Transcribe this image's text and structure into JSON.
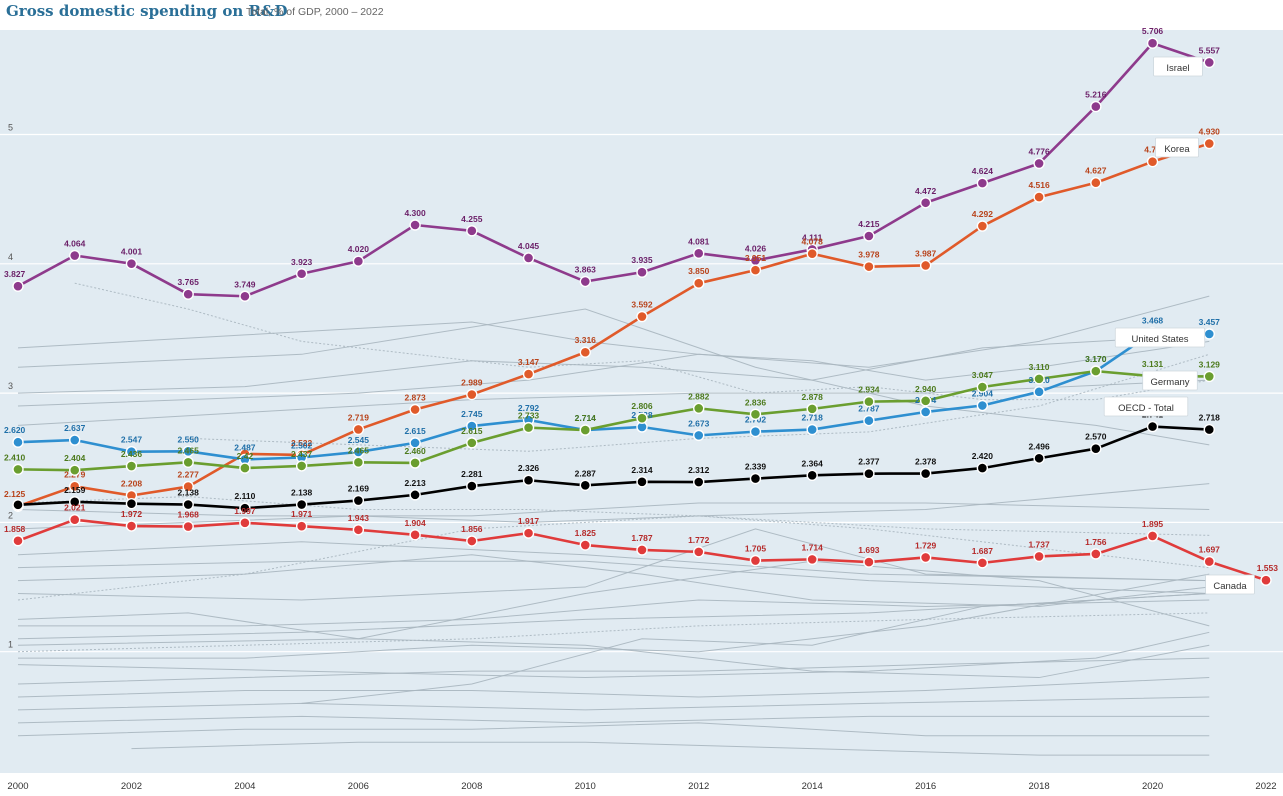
{
  "header": {
    "title": "Gross domestic spending on R&D",
    "subtitle": "Total, % of GDP, 2000 – 2022"
  },
  "chart_data": {
    "type": "line",
    "title": "Gross domestic spending on R&D",
    "subtitle": "Total, % of GDP, 2000 – 2022",
    "xlabel": "",
    "ylabel": "",
    "xlim": [
      2000,
      2022
    ],
    "ylim": [
      0,
      5.9
    ],
    "x_ticks": [
      2000,
      2002,
      2004,
      2006,
      2008,
      2010,
      2012,
      2014,
      2016,
      2018,
      2020,
      2022
    ],
    "y_ticks": [
      1,
      2,
      3,
      4,
      5
    ],
    "grid": true,
    "background_color": "#e1ebf2",
    "background_series_color": "#a9b6bf",
    "series": [
      {
        "name": "Israel",
        "color": "#8e3a8c",
        "label_color": "#6b1f68",
        "x": [
          2000,
          2001,
          2002,
          2003,
          2004,
          2005,
          2006,
          2007,
          2008,
          2009,
          2010,
          2011,
          2012,
          2013,
          2014,
          2015,
          2016,
          2017,
          2018,
          2019,
          2020,
          2021
        ],
        "values": [
          3.827,
          4.064,
          4.001,
          3.765,
          3.749,
          3.923,
          4.02,
          4.3,
          4.255,
          4.045,
          3.863,
          3.935,
          4.081,
          4.026,
          4.111,
          4.215,
          4.472,
          4.624,
          4.776,
          5.216,
          5.706,
          5.557
        ],
        "labels": [
          "3.827",
          "4.064",
          "4.001",
          "3.765",
          "3.749",
          "3.923",
          "4.020",
          "4.300",
          "4.255",
          "4.045",
          "3.863",
          "3.935",
          "4.081",
          "4.026",
          "4.111",
          "4.215",
          "4.472",
          "4.624",
          "4.776",
          "5.216",
          "5.706",
          "5.557"
        ]
      },
      {
        "name": "Korea",
        "color": "#e05a2a",
        "label_color": "#b8431b",
        "x": [
          2000,
          2001,
          2002,
          2003,
          2004,
          2005,
          2006,
          2007,
          2008,
          2009,
          2010,
          2011,
          2012,
          2013,
          2014,
          2015,
          2016,
          2017,
          2018,
          2019,
          2020,
          2021
        ],
        "values": [
          2.125,
          2.279,
          2.208,
          2.277,
          2.53,
          2.522,
          2.719,
          2.873,
          2.989,
          3.147,
          3.316,
          3.592,
          3.85,
          3.951,
          4.078,
          3.978,
          3.987,
          4.292,
          4.516,
          4.627,
          4.79,
          4.93
        ],
        "labels": [
          "2.125",
          "2.279",
          "2.208",
          "2.277",
          "",
          "2.522",
          "2.719",
          "2.873",
          "2.989",
          "3.147",
          "3.316",
          "3.592",
          "3.850",
          "3.951",
          "4.078",
          "3.978",
          "3.987",
          "4.292",
          "4.516",
          "4.627",
          "4.79",
          "4.930"
        ]
      },
      {
        "name": "United States",
        "color": "#2e8fd0",
        "label_color": "#1f6fa8",
        "x": [
          2000,
          2001,
          2002,
          2003,
          2004,
          2005,
          2006,
          2007,
          2008,
          2009,
          2010,
          2011,
          2012,
          2013,
          2014,
          2015,
          2016,
          2017,
          2018,
          2019,
          2020,
          2021
        ],
        "values": [
          2.62,
          2.637,
          2.547,
          2.55,
          2.487,
          2.502,
          2.545,
          2.615,
          2.745,
          2.792,
          2.714,
          2.738,
          2.673,
          2.702,
          2.718,
          2.787,
          2.854,
          2.904,
          3.01,
          3.17,
          3.468,
          3.457
        ],
        "labels": [
          "2.620",
          "2.637",
          "2.547",
          "2.550",
          "2.487",
          "2.502",
          "2.545",
          "2.615",
          "2.745",
          "2.792",
          "2.714",
          "2.738",
          "2.673",
          "2.702",
          "2.718",
          "2.787",
          "2.854",
          "2.904",
          "3.010",
          "3.170",
          "3.468",
          "3.457"
        ]
      },
      {
        "name": "Germany",
        "color": "#6a9e2f",
        "label_color": "#4c7a1c",
        "x": [
          2000,
          2001,
          2002,
          2003,
          2004,
          2005,
          2006,
          2007,
          2008,
          2009,
          2010,
          2011,
          2012,
          2013,
          2014,
          2015,
          2016,
          2017,
          2018,
          2019,
          2020,
          2021
        ],
        "values": [
          2.41,
          2.404,
          2.436,
          2.465,
          2.42,
          2.437,
          2.465,
          2.46,
          2.615,
          2.733,
          2.714,
          2.806,
          2.882,
          2.836,
          2.878,
          2.934,
          2.94,
          3.047,
          3.11,
          3.17,
          3.131,
          3.129
        ],
        "labels": [
          "2.410",
          "2.404",
          "2.436",
          "2.465",
          "2.42",
          "2.437",
          "2.465",
          "2.460",
          "2.615",
          "2.733",
          "2.714",
          "2.806",
          "2.882",
          "2.836",
          "2.878",
          "2.934",
          "2.940",
          "3.047",
          "3.110",
          "3.170",
          "3.131",
          "3.129"
        ]
      },
      {
        "name": "OECD - Total",
        "color": "#000000",
        "label_color": "#111111",
        "x": [
          2000,
          2001,
          2002,
          2003,
          2004,
          2005,
          2006,
          2007,
          2008,
          2009,
          2010,
          2011,
          2012,
          2013,
          2014,
          2015,
          2016,
          2017,
          2018,
          2019,
          2020,
          2021
        ],
        "values": [
          2.136,
          2.159,
          2.145,
          2.138,
          2.11,
          2.138,
          2.169,
          2.213,
          2.281,
          2.326,
          2.287,
          2.314,
          2.312,
          2.339,
          2.364,
          2.377,
          2.378,
          2.42,
          2.496,
          2.57,
          2.741,
          2.718
        ],
        "labels": [
          "",
          "2.159",
          "",
          "2.138",
          "2.110",
          "2.138",
          "2.169",
          "2.213",
          "2.281",
          "2.326",
          "2.287",
          "2.314",
          "2.312",
          "2.339",
          "2.364",
          "2.377",
          "2.378",
          "2.420",
          "2.496",
          "2.570",
          "2.741",
          "2.718"
        ]
      },
      {
        "name": "Canada",
        "color": "#e03b3b",
        "label_color": "#b52a2a",
        "x": [
          2000,
          2001,
          2002,
          2003,
          2004,
          2005,
          2006,
          2007,
          2008,
          2009,
          2010,
          2011,
          2012,
          2013,
          2014,
          2015,
          2016,
          2017,
          2018,
          2019,
          2020,
          2021,
          2022
        ],
        "values": [
          1.858,
          2.021,
          1.972,
          1.968,
          1.997,
          1.971,
          1.943,
          1.904,
          1.856,
          1.917,
          1.825,
          1.787,
          1.772,
          1.705,
          1.714,
          1.693,
          1.729,
          1.687,
          1.737,
          1.756,
          1.895,
          1.697,
          1.553
        ],
        "labels": [
          "1.858",
          "2.021",
          "1.972",
          "1.968",
          "1.997",
          "1.971",
          "1.943",
          "1.904",
          "1.856",
          "1.917",
          "1.825",
          "1.787",
          "1.772",
          "1.705",
          "1.714",
          "1.693",
          "1.729",
          "1.687",
          "1.737",
          "1.756",
          "1.895",
          "1.697",
          "1.553"
        ]
      }
    ],
    "background_series": [
      {
        "dashed": true,
        "x": [
          2001,
          2003,
          2005,
          2007,
          2009,
          2011,
          2013,
          2015,
          2017,
          2019,
          2021
        ],
        "values": [
          3.85,
          3.65,
          3.4,
          3.3,
          3.2,
          3.25,
          3.0,
          3.05,
          2.95,
          2.95,
          3.1
        ]
      },
      {
        "dashed": false,
        "x": [
          2000,
          2004,
          2008,
          2010,
          2012,
          2014,
          2016,
          2018,
          2021
        ],
        "values": [
          3.35,
          3.45,
          3.55,
          3.4,
          3.3,
          3.25,
          3.1,
          3.2,
          3.4
        ]
      },
      {
        "dashed": false,
        "x": [
          2000,
          2005,
          2010,
          2013,
          2016,
          2019,
          2021
        ],
        "values": [
          3.2,
          3.3,
          3.65,
          3.2,
          2.9,
          2.75,
          2.6
        ]
      },
      {
        "dashed": false,
        "x": [
          2000,
          2004,
          2008,
          2011,
          2014,
          2017,
          2021
        ],
        "values": [
          3.0,
          3.05,
          3.25,
          3.2,
          3.1,
          3.35,
          3.45
        ]
      },
      {
        "dashed": false,
        "x": [
          2000,
          2003,
          2006,
          2009,
          2012,
          2015,
          2018,
          2021
        ],
        "values": [
          2.9,
          2.95,
          3.0,
          3.1,
          3.3,
          3.2,
          3.4,
          3.75
        ]
      },
      {
        "dashed": false,
        "x": [
          2000,
          2004,
          2008,
          2012,
          2016,
          2021
        ],
        "values": [
          2.75,
          2.85,
          2.95,
          3.0,
          3.0,
          3.1
        ]
      },
      {
        "dashed": true,
        "x": [
          2003,
          2006,
          2009,
          2012,
          2015,
          2018,
          2021
        ],
        "values": [
          2.65,
          2.6,
          2.55,
          2.65,
          2.7,
          2.9,
          3.3
        ]
      },
      {
        "dashed": true,
        "x": [
          2000,
          2003,
          2006,
          2009,
          2012,
          2015,
          2018,
          2021
        ],
        "values": [
          2.15,
          2.2,
          2.1,
          2.1,
          2.05,
          1.95,
          1.8,
          1.65
        ]
      },
      {
        "dashed": false,
        "x": [
          2000,
          2004,
          2008,
          2012,
          2016,
          2021
        ],
        "values": [
          2.1,
          2.05,
          2.05,
          2.15,
          2.15,
          2.1
        ]
      },
      {
        "dashed": false,
        "x": [
          2000,
          2003,
          2006,
          2009,
          2012,
          2016,
          2021
        ],
        "values": [
          1.95,
          2.0,
          2.05,
          2.0,
          2.05,
          2.1,
          2.3
        ]
      },
      {
        "dashed": false,
        "x": [
          2000,
          2005,
          2010,
          2015,
          2021
        ],
        "values": [
          1.75,
          1.85,
          1.75,
          1.6,
          1.55
        ]
      },
      {
        "dashed": false,
        "x": [
          2000,
          2005,
          2010,
          2015,
          2021
        ],
        "values": [
          1.65,
          1.7,
          1.7,
          1.55,
          1.45
        ]
      },
      {
        "dashed": false,
        "x": [
          2000,
          2004,
          2008,
          2011,
          2014,
          2018,
          2021
        ],
        "values": [
          1.55,
          1.6,
          1.75,
          1.6,
          1.4,
          1.35,
          1.5
        ]
      },
      {
        "dashed": false,
        "x": [
          2000,
          2005,
          2010,
          2013,
          2016,
          2021
        ],
        "values": [
          1.45,
          1.4,
          1.5,
          1.95,
          1.6,
          1.55
        ]
      },
      {
        "dashed": true,
        "x": [
          2000,
          2004,
          2008,
          2012,
          2016,
          2021
        ],
        "values": [
          1.4,
          1.6,
          1.95,
          2.05,
          1.95,
          1.9
        ]
      },
      {
        "dashed": true,
        "x": [
          2000,
          2004,
          2008,
          2012,
          2016,
          2021
        ],
        "values": [
          1.0,
          1.05,
          1.1,
          1.2,
          1.25,
          1.3
        ]
      },
      {
        "dashed": false,
        "x": [
          2000,
          2005,
          2010,
          2015,
          2021
        ],
        "values": [
          1.1,
          1.15,
          1.25,
          1.3,
          1.45
        ]
      },
      {
        "dashed": false,
        "x": [
          2000,
          2004,
          2008,
          2012,
          2016,
          2021
        ],
        "values": [
          0.95,
          0.95,
          1.05,
          1.0,
          1.2,
          1.6
        ]
      },
      {
        "dashed": false,
        "x": [
          2000,
          2006,
          2010,
          2014,
          2018,
          2021
        ],
        "values": [
          1.05,
          1.1,
          1.05,
          0.85,
          0.8,
          1.05
        ]
      },
      {
        "dashed": false,
        "x": [
          2000,
          2005,
          2010,
          2015,
          2019,
          2021
        ],
        "values": [
          0.9,
          0.85,
          0.8,
          0.85,
          0.95,
          1.15
        ]
      },
      {
        "dashed": false,
        "x": [
          2000,
          2004,
          2008,
          2012,
          2016,
          2021
        ],
        "values": [
          0.75,
          0.8,
          0.85,
          0.85,
          0.9,
          0.95
        ]
      },
      {
        "dashed": false,
        "x": [
          2000,
          2004,
          2008,
          2012,
          2016,
          2021
        ],
        "values": [
          0.65,
          0.7,
          0.7,
          0.65,
          0.7,
          0.8
        ]
      },
      {
        "dashed": false,
        "x": [
          2000,
          2005,
          2010,
          2015,
          2021
        ],
        "values": [
          0.55,
          0.6,
          0.55,
          0.6,
          0.65
        ]
      },
      {
        "dashed": false,
        "x": [
          2000,
          2005,
          2010,
          2015,
          2021
        ],
        "values": [
          0.45,
          0.5,
          0.45,
          0.5,
          0.5
        ]
      },
      {
        "dashed": false,
        "x": [
          2000,
          2004,
          2008,
          2012,
          2016,
          2021
        ],
        "values": [
          0.35,
          0.4,
          0.4,
          0.45,
          0.35,
          0.35
        ]
      },
      {
        "dashed": false,
        "x": [
          2002,
          2006,
          2010,
          2014,
          2018,
          2021
        ],
        "values": [
          0.25,
          0.3,
          0.3,
          0.25,
          0.2,
          0.2
        ]
      },
      {
        "dashed": false,
        "x": [
          2000,
          2003,
          2006,
          2010,
          2014,
          2018,
          2021
        ],
        "values": [
          1.25,
          1.3,
          1.1,
          1.45,
          1.7,
          1.55,
          1.2
        ]
      },
      {
        "dashed": false,
        "x": [
          2000,
          2004,
          2008,
          2012,
          2016,
          2021
        ],
        "values": [
          1.2,
          1.2,
          1.25,
          1.4,
          1.35,
          1.4
        ]
      },
      {
        "dashed": false,
        "x": [
          2005,
          2008,
          2011,
          2014,
          2017,
          2021
        ],
        "values": [
          0.6,
          0.75,
          1.1,
          1.05,
          1.35,
          1.45
        ]
      }
    ]
  }
}
